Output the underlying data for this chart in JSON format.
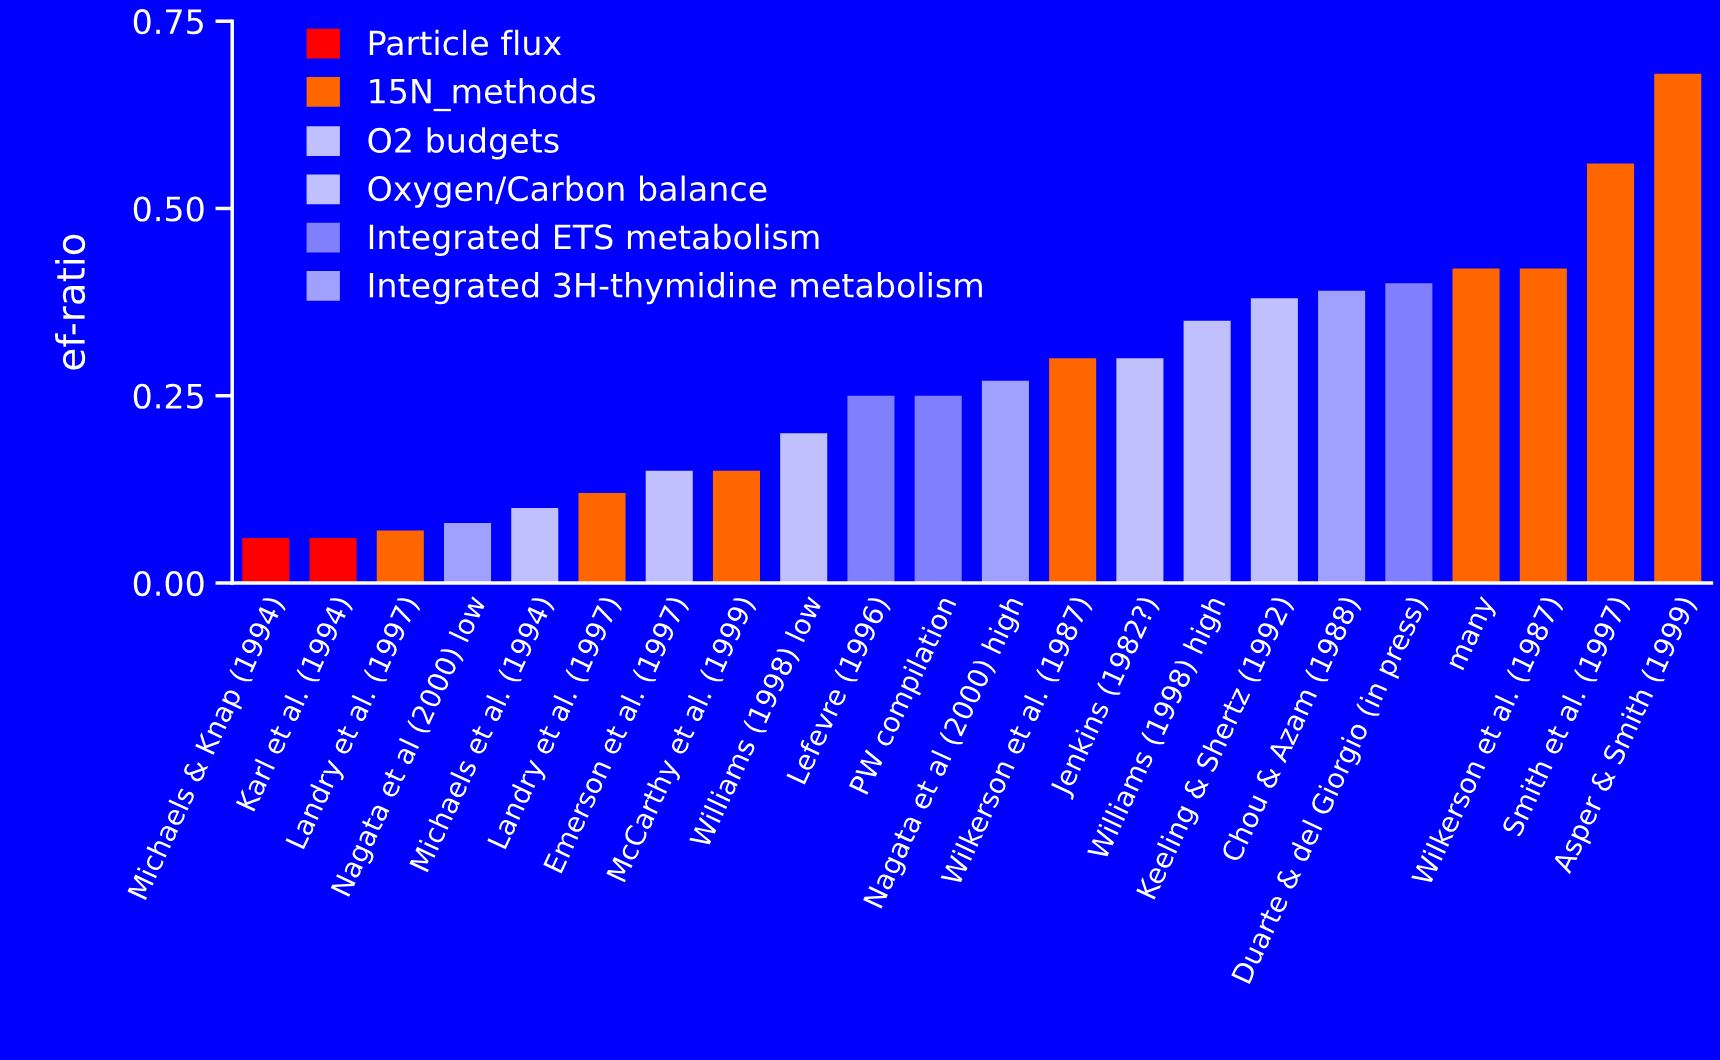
{
  "chart_data": {
    "type": "bar",
    "ylabel": "ef-ratio",
    "categories": [
      "Michaels & Knap (1994)",
      "Karl et al. (1994)",
      "Landry et al. (1997)",
      "Nagata et al (2000) low",
      "Michaels et al. (1994)",
      "Landry et al. (1997)",
      "Emerson et al. (1997)",
      "McCarthy et al. (1999)",
      "Williams (1998) low",
      "Lefevre (1996)",
      "PW compilation",
      "Nagata et al (2000) high",
      "Wilkerson et al. (1987)",
      "Jenkins (1982?)",
      "Williams (1998) high",
      "Keeling & Shertz (1992)",
      "Chou & Azam (1988)",
      "Duarte & del Giorgio (in press)",
      "many",
      "Wilkerson et al. (1987)",
      "Smith et al. (1997)",
      "Asper & Smith (1999)"
    ],
    "series": [
      {
        "name": "Particle flux",
        "color": "#ff0000",
        "values": [
          0.06,
          0.06,
          null,
          null,
          null,
          null,
          null,
          null,
          null,
          null,
          null,
          null,
          null,
          null,
          null,
          null,
          null,
          null,
          null,
          null,
          null,
          null
        ]
      },
      {
        "name": "15N_methods",
        "color": "#ff6600",
        "values": [
          null,
          null,
          0.07,
          null,
          null,
          0.12,
          null,
          0.15,
          null,
          null,
          null,
          null,
          0.3,
          null,
          null,
          null,
          null,
          null,
          0.42,
          0.42,
          0.56,
          0.68
        ]
      },
      {
        "name": "O2 budgets",
        "color": "#c0c0ff",
        "values": [
          null,
          null,
          null,
          null,
          null,
          null,
          0.15,
          null,
          null,
          null,
          null,
          null,
          null,
          0.3,
          null,
          0.38,
          null,
          null,
          null,
          null,
          null,
          null
        ]
      },
      {
        "name": "Oxygen/Carbon balance",
        "color": "#c0c0ff",
        "values": [
          null,
          null,
          null,
          null,
          0.1,
          null,
          null,
          null,
          0.2,
          null,
          null,
          null,
          null,
          null,
          0.35,
          null,
          null,
          null,
          null,
          null,
          null,
          null
        ]
      },
      {
        "name": "Integrated ETS metabolism",
        "color": "#8080ff",
        "values": [
          null,
          null,
          null,
          null,
          null,
          null,
          null,
          null,
          null,
          0.25,
          0.25,
          null,
          null,
          null,
          null,
          null,
          null,
          0.4,
          null,
          null,
          null,
          null
        ]
      },
      {
        "name": "Integrated 3H-thymidine metabolism",
        "color": "#a0a0ff",
        "values": [
          null,
          null,
          null,
          0.08,
          null,
          null,
          null,
          null,
          null,
          null,
          null,
          0.27,
          null,
          null,
          null,
          null,
          0.39,
          null,
          null,
          null,
          null,
          null
        ]
      }
    ],
    "ylim": [
      0,
      0.75
    ],
    "yticks": [
      {
        "value": 0,
        "label": "0.00"
      },
      {
        "value": 0.25,
        "label": "0.25"
      },
      {
        "value": 0.5,
        "label": "0.50"
      },
      {
        "value": 0.75,
        "label": "0.75"
      }
    ],
    "legend": "top left"
  }
}
